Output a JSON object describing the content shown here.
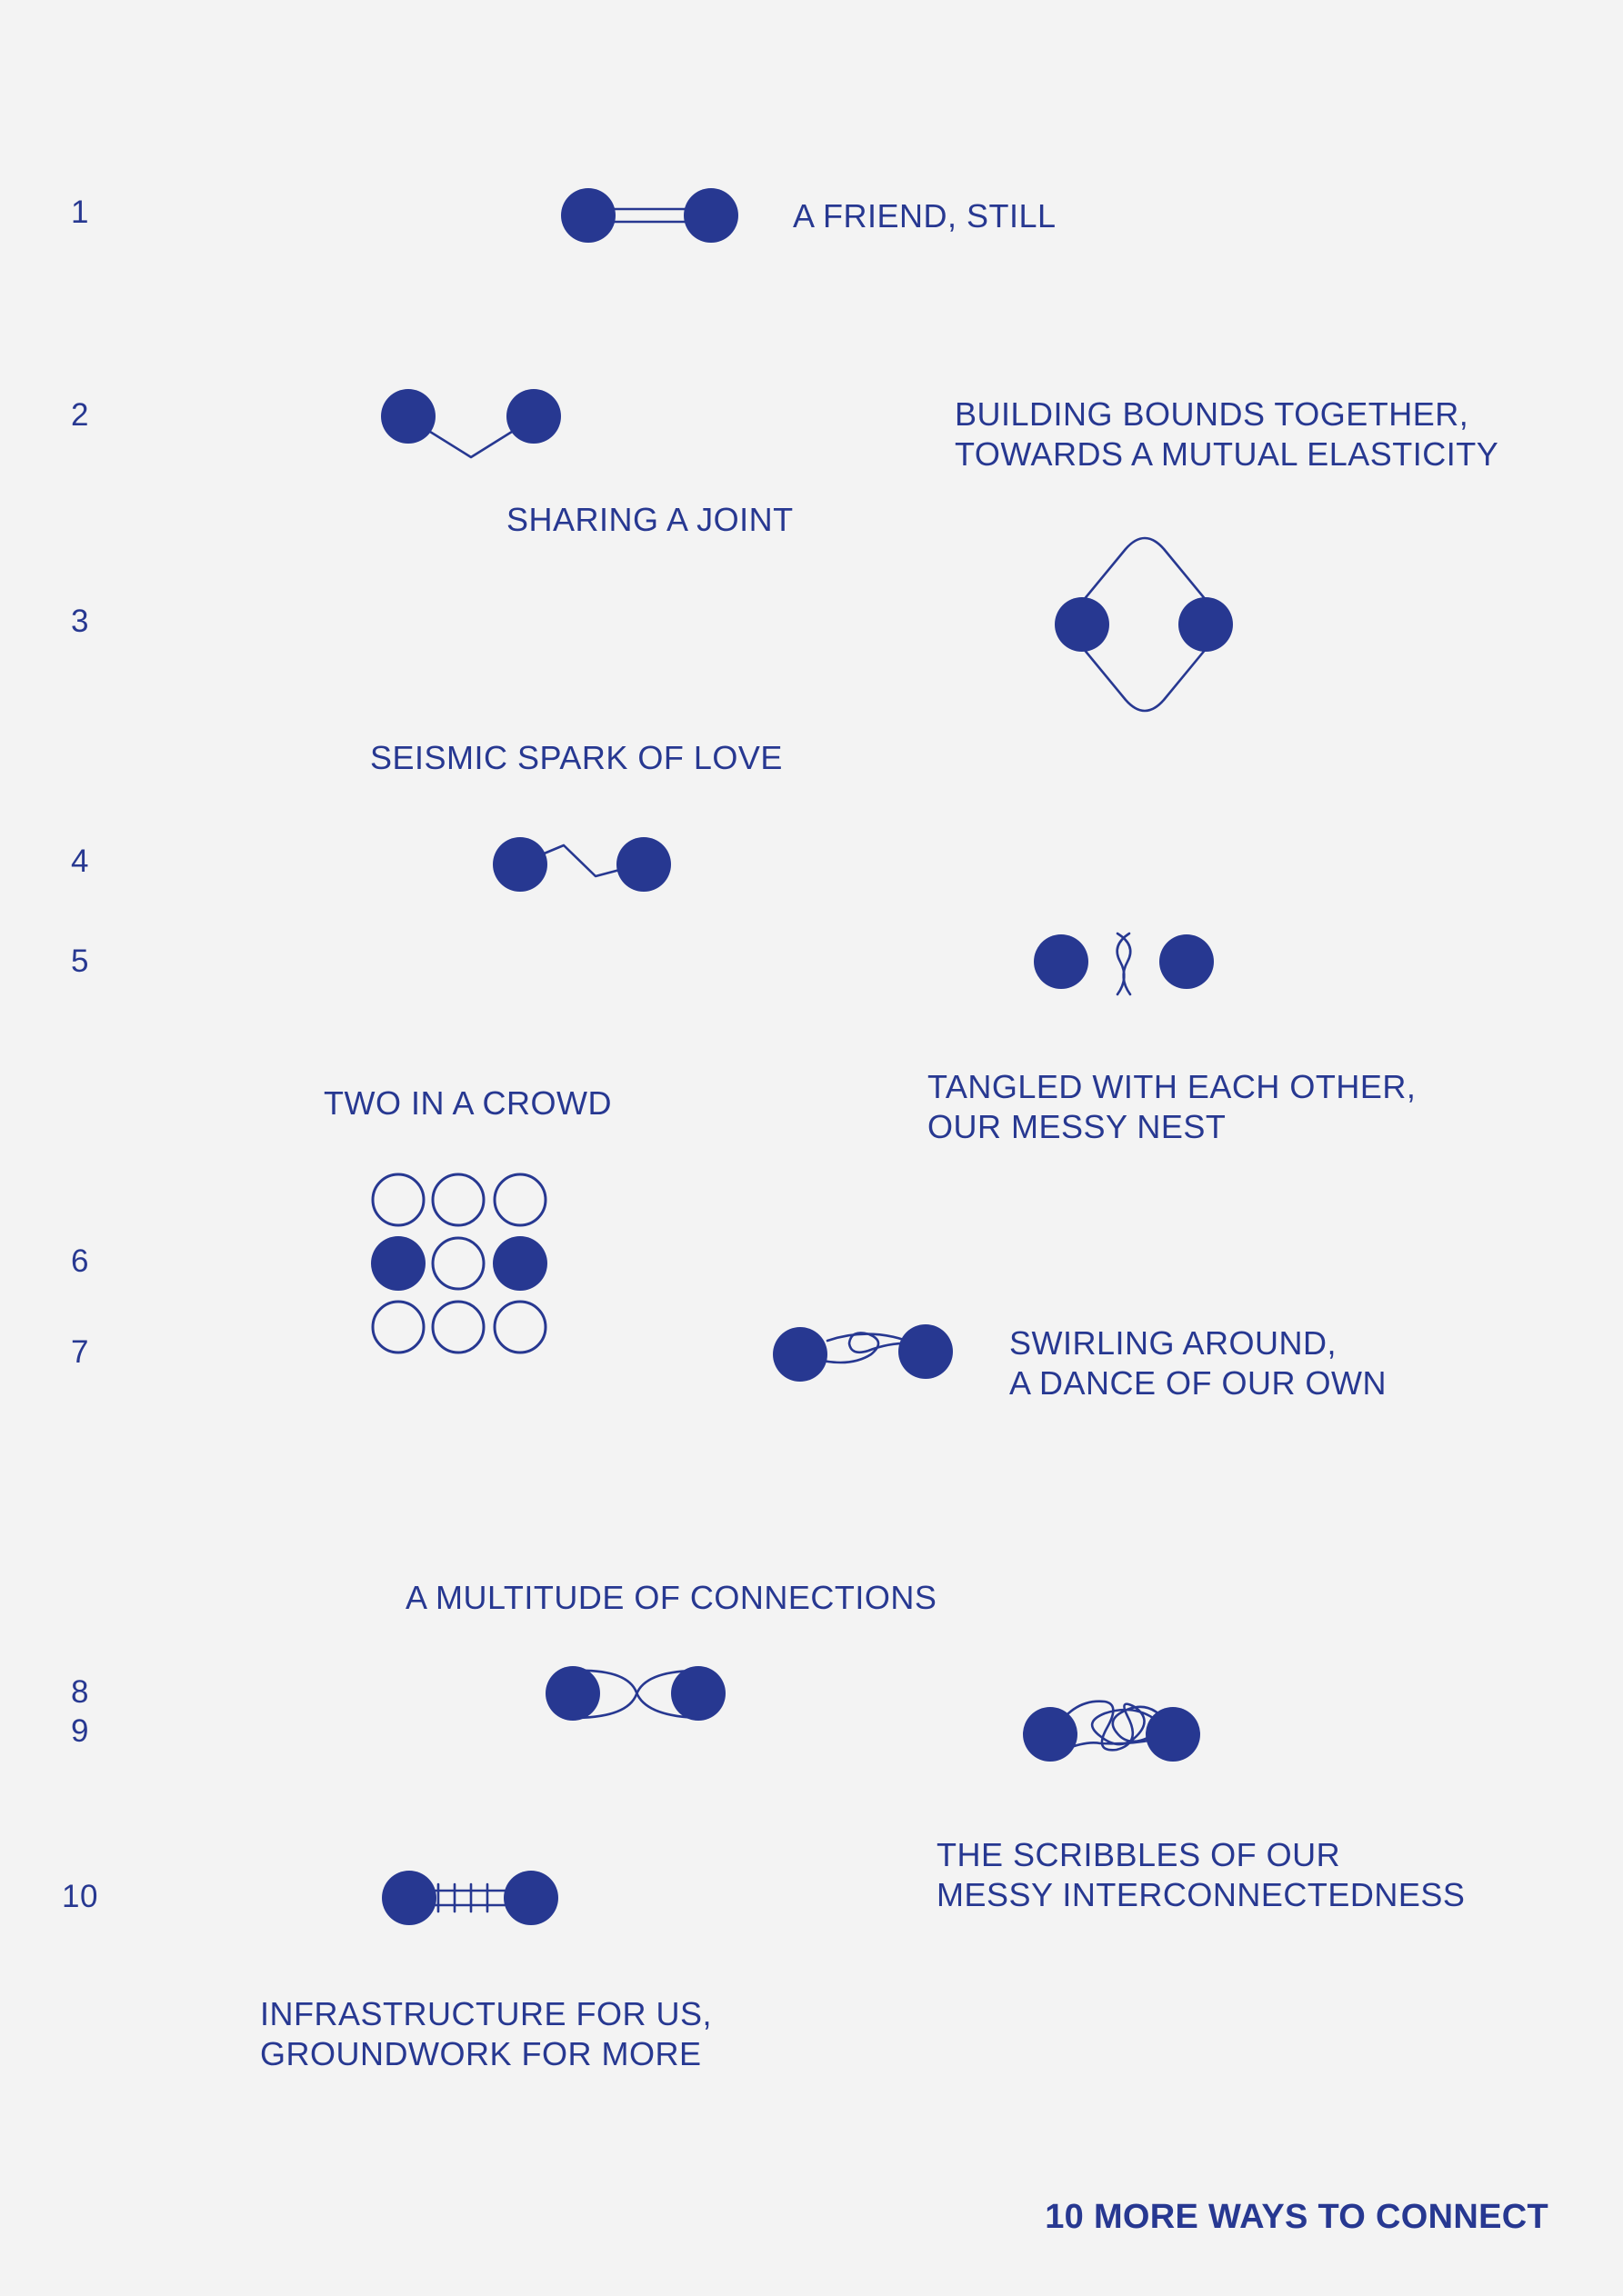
{
  "title": "10 MORE WAYS TO CONNECT",
  "colors": {
    "ink": "#273891",
    "background": "#f3f3f3"
  },
  "numbers": [
    "1",
    "2",
    "3",
    "4",
    "5",
    "6",
    "7",
    "8",
    "9",
    "10"
  ],
  "captions": {
    "c1": [
      "A FRIEND, STILL"
    ],
    "c2": [
      "BUILDING BOUNDS TOGETHER,",
      "TOWARDS A MUTUAL ELASTICITY"
    ],
    "c3": [
      "SHARING A JOINT"
    ],
    "c4": [
      "SEISMIC SPARK OF LOVE"
    ],
    "c5": [
      "TANGLED WITH EACH OTHER,",
      "OUR MESSY NEST"
    ],
    "c6": [
      "TWO IN A CROWD"
    ],
    "c7": [
      "SWIRLING AROUND,",
      "A DANCE OF OUR OWN"
    ],
    "c8": [
      "A MULTITUDE OF CONNECTIONS"
    ],
    "c9": [
      "THE SCRIBBLES OF OUR",
      "MESSY INTERCONNECTEDNESS"
    ],
    "c10": [
      "INFRASTRUCTURE FOR US,",
      "GROUNDWORK FOR MORE"
    ]
  },
  "icons": [
    "double-line-connection-icon",
    "angled-joint-connection-icon",
    "diamond-loop-connection-icon",
    "zigzag-spark-connection-icon",
    "twisted-strand-connection-icon",
    "grid-crowd-icon",
    "swirl-connection-icon",
    "crossing-curves-connection-icon",
    "scribble-connection-icon",
    "ladder-connection-icon"
  ]
}
